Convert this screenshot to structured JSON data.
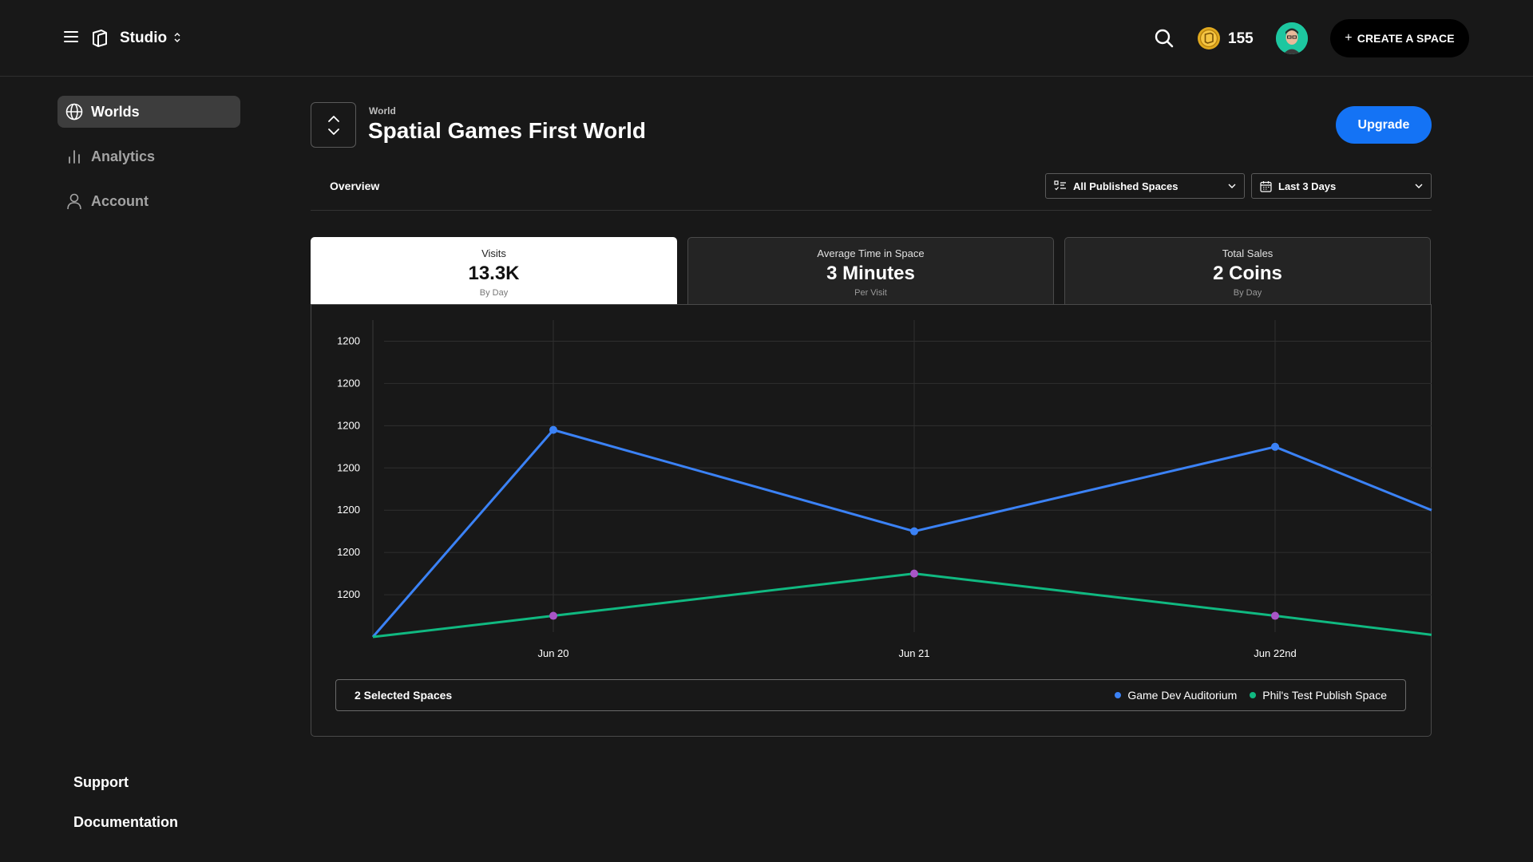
{
  "topbar": {
    "studio_label": "Studio",
    "coins": "155",
    "create_label": "CREATE A SPACE"
  },
  "sidebar": {
    "items": [
      {
        "label": "Worlds",
        "icon": "globe-icon",
        "active": true
      },
      {
        "label": "Analytics",
        "icon": "bar-chart-icon",
        "active": false
      },
      {
        "label": "Account",
        "icon": "user-icon",
        "active": false
      }
    ],
    "footer": [
      "Support",
      "Documentation"
    ]
  },
  "header": {
    "kicker": "World",
    "title": "Spatial Games First World",
    "upgrade_label": "Upgrade",
    "tab": "Overview",
    "space_filter": "All Published Spaces",
    "date_filter": "Last 3 Days"
  },
  "cards": [
    {
      "label": "Visits",
      "value": "13.3K",
      "sub": "By Day"
    },
    {
      "label": "Average Time in Space",
      "value": "3 Minutes",
      "sub": "Per Visit"
    },
    {
      "label": "Total Sales",
      "value": "2 Coins",
      "sub": "By Day"
    }
  ],
  "legend": {
    "title": "2 Selected Spaces"
  },
  "colors": {
    "accent": "#1473f5",
    "series1": "#3b82f6",
    "series2": "#10b981",
    "marker2": "#a855c7"
  },
  "chart_data": {
    "type": "line",
    "x": [
      "",
      "Jun 20",
      "Jun 21",
      "Jun 22nd",
      ""
    ],
    "y_tick_labels": [
      "1200",
      "1200",
      "1200",
      "1200",
      "1200",
      "1200",
      "1200"
    ],
    "ylim": [
      0,
      7.5
    ],
    "grid": true,
    "legend_position": "bottom",
    "series": [
      {
        "name": "Game Dev Auditorium",
        "color": "#3b82f6",
        "values": [
          0,
          4.9,
          2.5,
          4.5,
          3.0
        ]
      },
      {
        "name": "Phil's Test Publish Space",
        "color": "#10b981",
        "values": [
          0,
          0.5,
          1.5,
          0.5,
          0.05
        ]
      }
    ]
  }
}
